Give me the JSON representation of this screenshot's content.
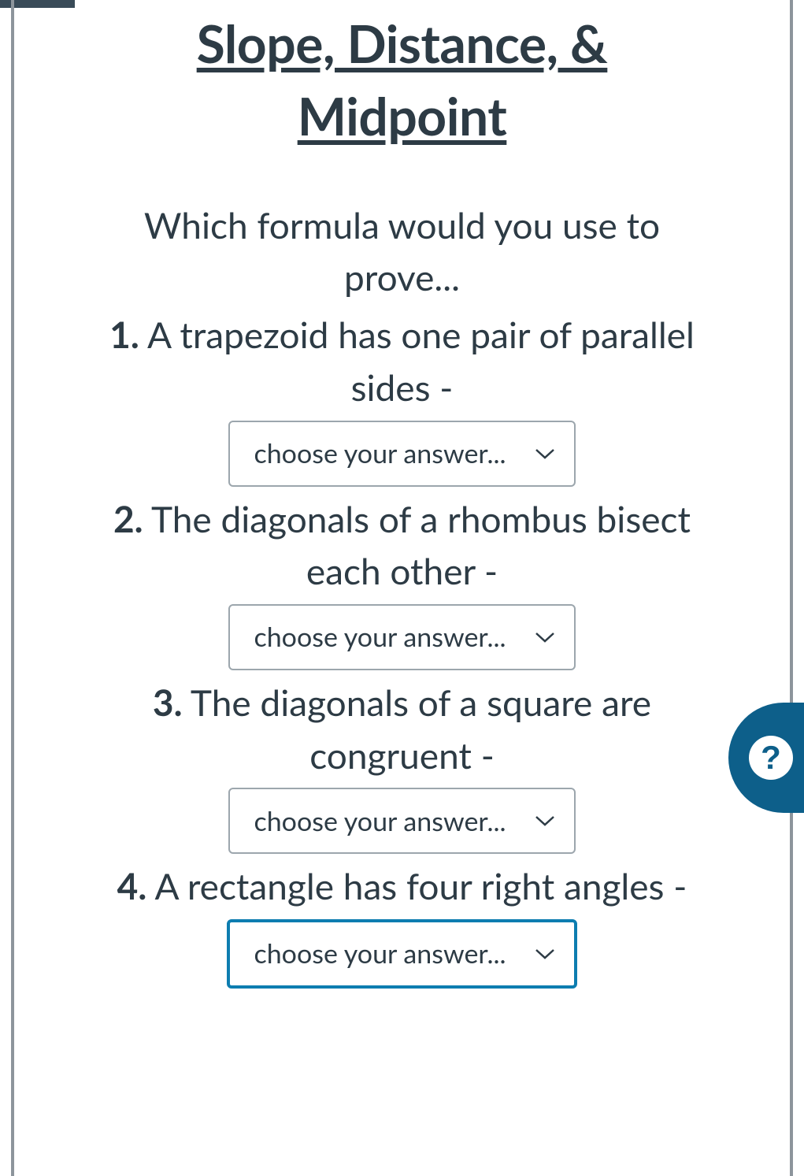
{
  "title": "Slope, Distance, & Midpoint",
  "intro": "Which formula would you use to prove...",
  "questions": [
    {
      "num": "1.",
      "text": " A trapezoid has one pair of parallel sides -",
      "placeholder": "choose your answer...",
      "focused": false,
      "inline": false
    },
    {
      "num": "2.",
      "text": " The diagonals of a rhombus bisect each other -",
      "placeholder": "choose your answer...",
      "focused": false,
      "inline": false
    },
    {
      "num": "3.",
      "text": " The diagonals of a square are congruent -",
      "placeholder": "choose your answer...",
      "focused": false,
      "inline": false
    },
    {
      "num": "4.",
      "text": " A rectangle has four right angles - ",
      "placeholder": "choose your answer...",
      "focused": true,
      "inline": true
    }
  ],
  "help_glyph": "?",
  "colors": {
    "text": "#2d3b45",
    "border": "#9ca6ad",
    "focus": "#0d7db0",
    "help_bg": "#0d5f8a",
    "frame": "#8d959c",
    "stub": "#394b58"
  }
}
